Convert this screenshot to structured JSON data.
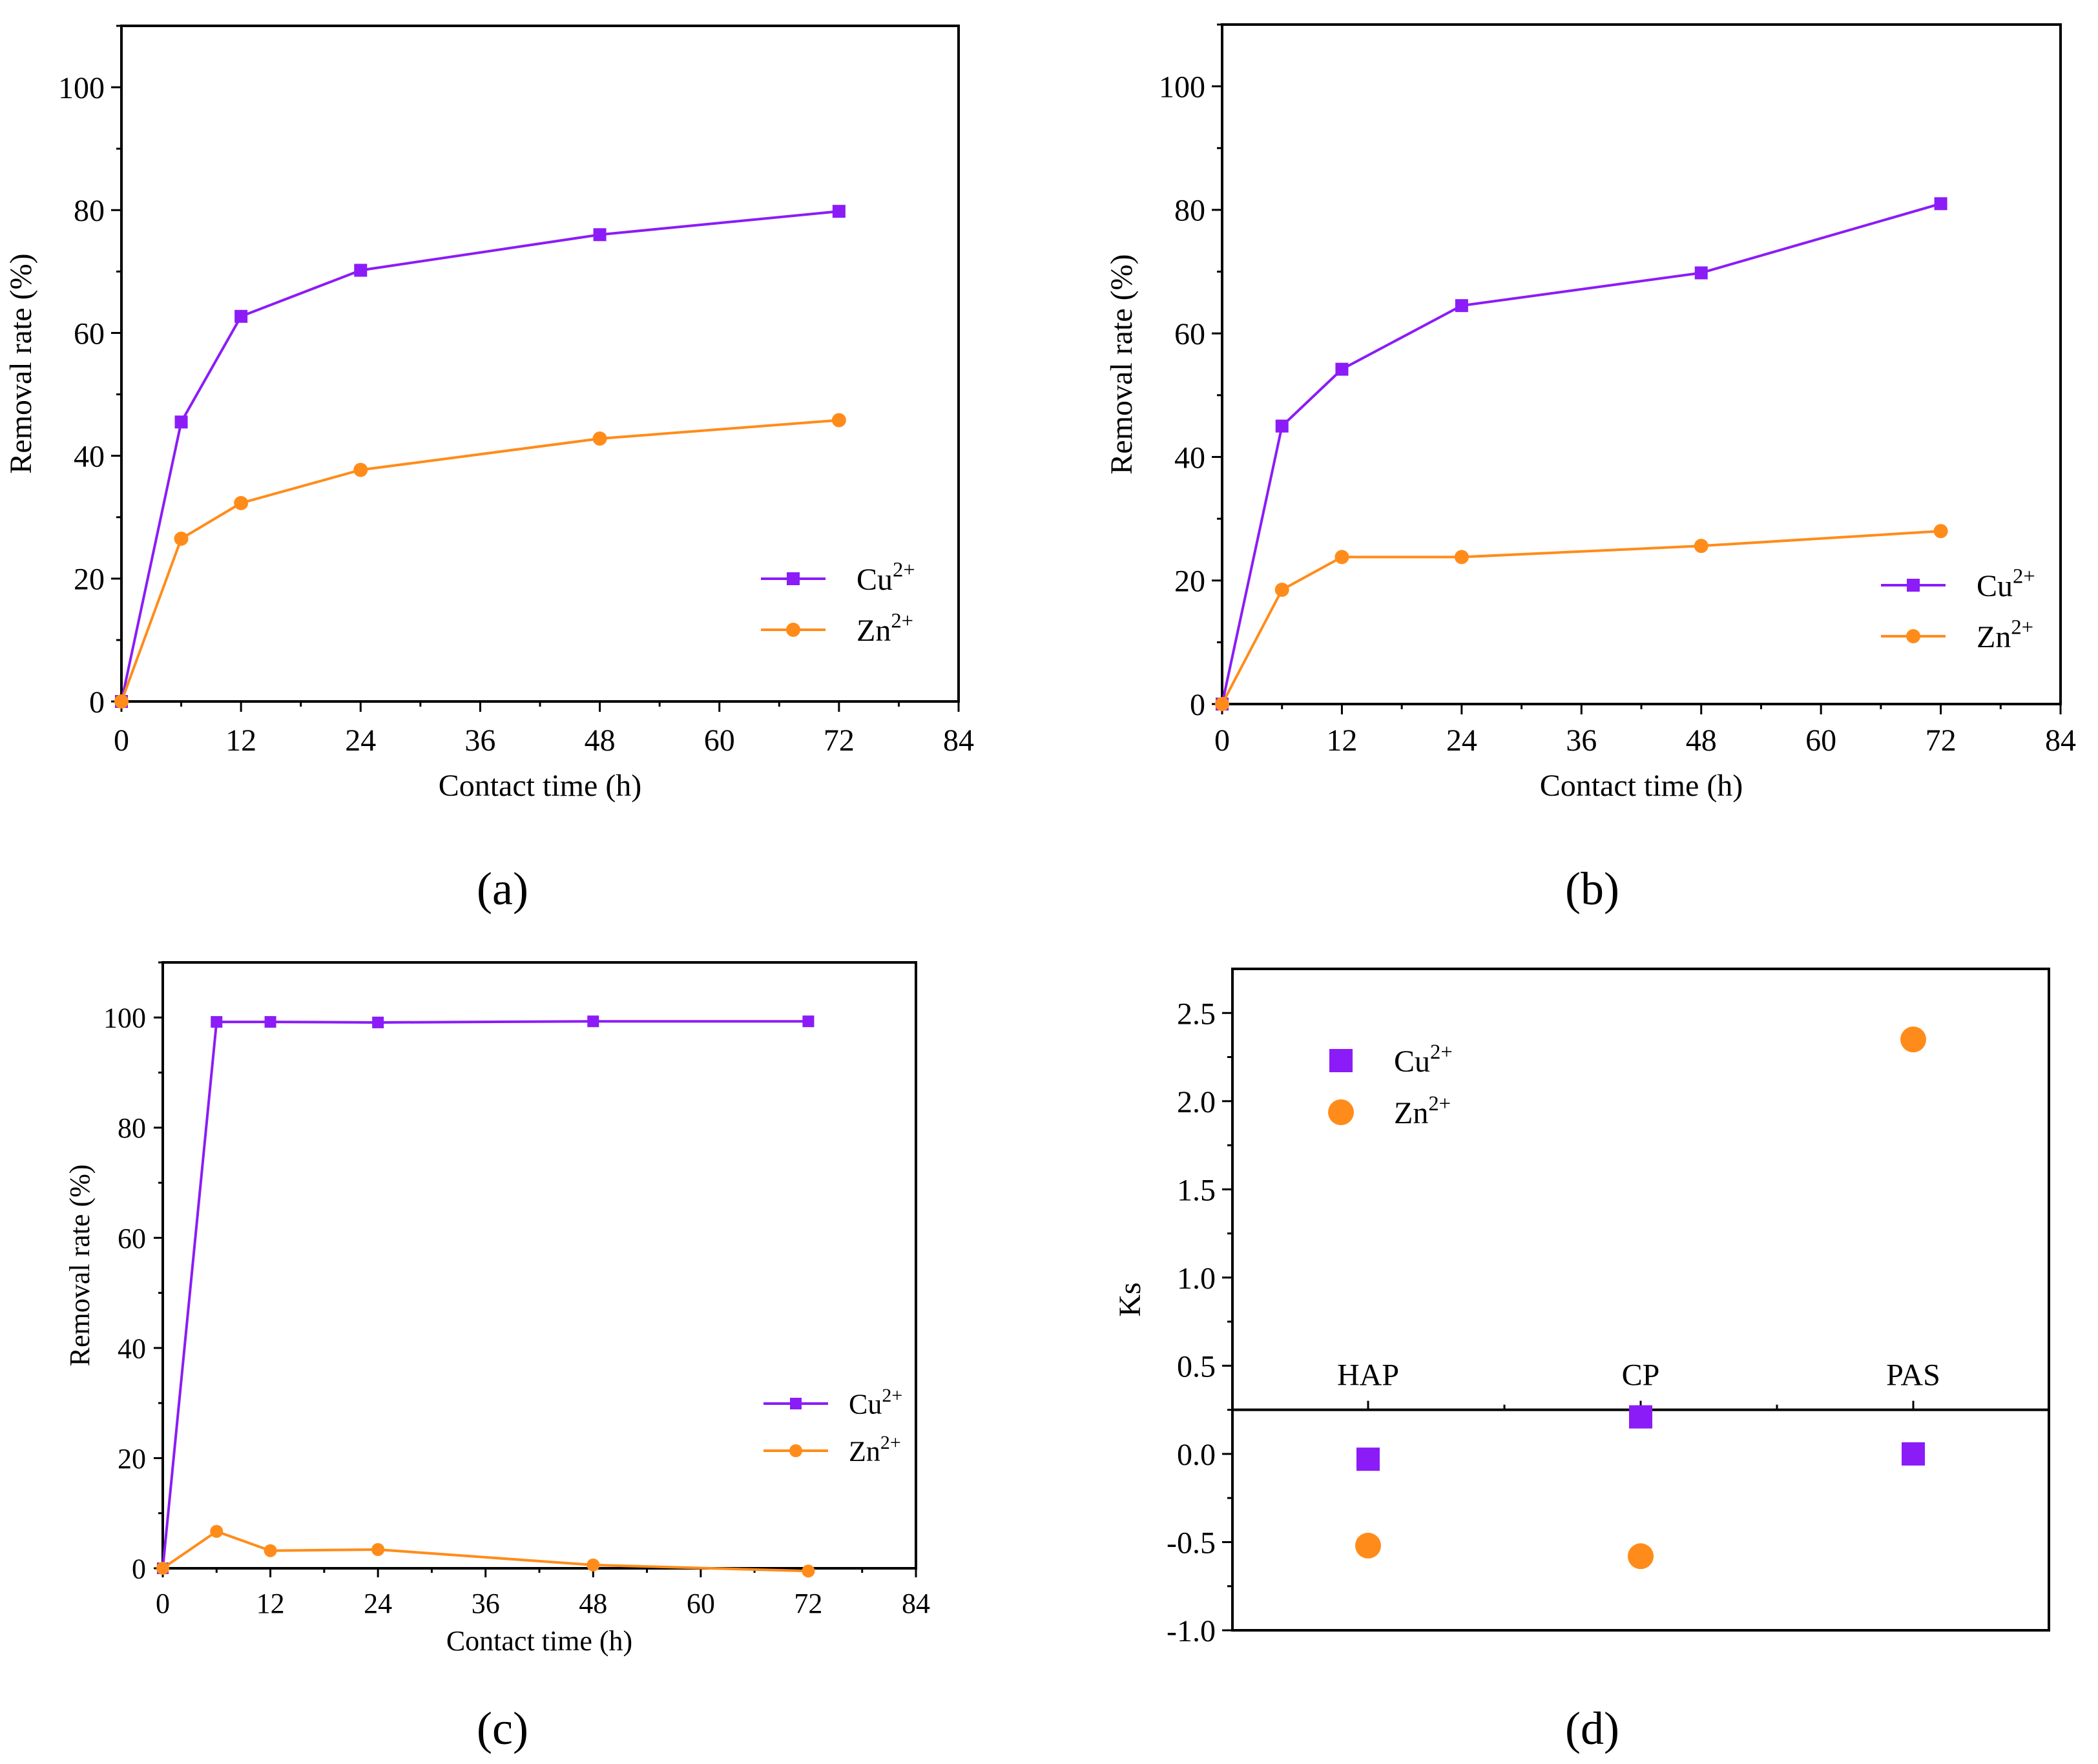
{
  "figure": {
    "panel_labels": [
      "(a)",
      "(b)",
      "(c)",
      "(d)"
    ]
  },
  "colors": {
    "cu": "#8B1CF7",
    "zn": "#FF8C1A",
    "axis": "#000000"
  },
  "chart_data": [
    {
      "id": "a",
      "type": "line",
      "title": "",
      "xlabel": "Contact time (h)",
      "ylabel": "Removal rate (%)",
      "xlim": [
        0,
        84
      ],
      "ylim": [
        0,
        110
      ],
      "xticks": [
        0,
        12,
        24,
        36,
        48,
        60,
        72,
        84
      ],
      "yticks": [
        0,
        20,
        40,
        60,
        80,
        100
      ],
      "legend_position": "bottom-right",
      "series": [
        {
          "name": "Cu2+",
          "label_base": "Cu",
          "label_sup": "2+",
          "marker": "square",
          "color": "#8B1CF7",
          "x": [
            0,
            6,
            12,
            24,
            48,
            72
          ],
          "y": [
            0,
            45.5,
            62.7,
            70.2,
            76.0,
            79.8
          ]
        },
        {
          "name": "Zn2+",
          "label_base": "Zn",
          "label_sup": "2+",
          "marker": "circle",
          "color": "#FF8C1A",
          "x": [
            0,
            6,
            12,
            24,
            48,
            72
          ],
          "y": [
            0,
            26.5,
            32.3,
            37.7,
            42.8,
            45.8
          ]
        }
      ]
    },
    {
      "id": "b",
      "type": "line",
      "title": "",
      "xlabel": "Contact time (h)",
      "ylabel": "Removal rate (%)",
      "xlim": [
        0,
        84
      ],
      "ylim": [
        0,
        110
      ],
      "xticks": [
        0,
        12,
        24,
        36,
        48,
        60,
        72,
        84
      ],
      "yticks": [
        0,
        20,
        40,
        60,
        80,
        100
      ],
      "legend_position": "bottom-right",
      "series": [
        {
          "name": "Cu2+",
          "label_base": "Cu",
          "label_sup": "2+",
          "marker": "square",
          "color": "#8B1CF7",
          "x": [
            0,
            6,
            12,
            24,
            48,
            72
          ],
          "y": [
            0,
            45.0,
            54.2,
            64.5,
            69.8,
            81.0
          ]
        },
        {
          "name": "Zn2+",
          "label_base": "Zn",
          "label_sup": "2+",
          "marker": "circle",
          "color": "#FF8C1A",
          "x": [
            0,
            6,
            12,
            24,
            48,
            72
          ],
          "y": [
            0,
            18.5,
            23.8,
            23.8,
            25.6,
            28.0
          ]
        }
      ]
    },
    {
      "id": "c",
      "type": "line",
      "title": "",
      "xlabel": "Contact time (h)",
      "ylabel": "Removal rate (%)",
      "xlim": [
        0,
        84
      ],
      "ylim": [
        0,
        110
      ],
      "xticks": [
        0,
        12,
        24,
        36,
        48,
        60,
        72,
        84
      ],
      "yticks": [
        0,
        20,
        40,
        60,
        80,
        100
      ],
      "legend_position": "bottom-right",
      "series": [
        {
          "name": "Cu2+",
          "label_base": "Cu",
          "label_sup": "2+",
          "marker": "square",
          "color": "#8B1CF7",
          "x": [
            0,
            6,
            12,
            24,
            48,
            72
          ],
          "y": [
            0,
            99.2,
            99.2,
            99.1,
            99.3,
            99.3
          ]
        },
        {
          "name": "Zn2+",
          "label_base": "Zn",
          "label_sup": "2+",
          "marker": "circle",
          "color": "#FF8C1A",
          "x": [
            0,
            6,
            12,
            24,
            48,
            72
          ],
          "y": [
            0,
            6.7,
            3.2,
            3.4,
            0.6,
            -0.5
          ]
        }
      ]
    },
    {
      "id": "d",
      "type": "scatter",
      "title": "",
      "xlabel": "",
      "ylabel": "Ks",
      "ylim": [
        -1.0,
        2.75
      ],
      "yticks": [
        -1.0,
        -0.5,
        0.0,
        0.5,
        1.0,
        1.5,
        2.0,
        2.5
      ],
      "ytick_labels": [
        "-1.0",
        "-0.5",
        "0.0",
        "0.5",
        "1.0",
        "1.5",
        "2.0",
        "2.5"
      ],
      "categories": [
        "HAP",
        "CP",
        "PAS"
      ],
      "category_axis_y": 0.25,
      "legend_position": "top-left",
      "series": [
        {
          "name": "Cu2+",
          "label_base": "Cu",
          "label_sup": "2+",
          "marker": "square",
          "color": "#8B1CF7",
          "values": [
            -0.03,
            0.21,
            0.0
          ]
        },
        {
          "name": "Zn2+",
          "label_base": "Zn",
          "label_sup": "2+",
          "marker": "circle",
          "color": "#FF8C1A",
          "values": [
            -0.52,
            -0.58,
            2.35
          ]
        }
      ]
    }
  ]
}
